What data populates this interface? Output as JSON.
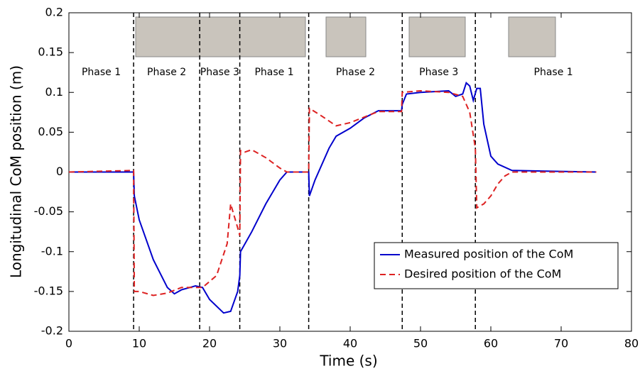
{
  "chart_data": {
    "type": "line",
    "xlabel": "Time (s)",
    "ylabel": "Longitudinal CoM position (m)",
    "xlim": [
      0,
      80
    ],
    "ylim": [
      -0.2,
      0.2
    ],
    "xticks": [
      0,
      10,
      20,
      30,
      40,
      50,
      60,
      70,
      80
    ],
    "yticks": [
      -0.2,
      -0.15,
      -0.1,
      -0.05,
      0,
      0.05,
      0.1,
      0.15,
      0.2
    ],
    "phase_boundaries": [
      9.2,
      18.6,
      24.3,
      34.1,
      47.4,
      57.8
    ],
    "phases": [
      "Phase 1",
      "Phase 2",
      "Phase 3",
      "Phase 1",
      "Phase 2",
      "Phase 3",
      "Phase 1"
    ],
    "legend": "lower right",
    "series": [
      {
        "name": "Measured position of the CoM",
        "color": "#0000cc",
        "dash": "solid",
        "x": [
          0,
          9.2,
          9.3,
          10,
          12,
          14,
          15,
          16,
          18,
          19,
          20,
          22,
          23,
          24,
          24.3,
          24.4,
          26,
          28,
          30,
          31,
          34.1,
          34.2,
          35,
          37,
          38,
          40,
          42,
          44,
          47.3,
          47.4,
          48,
          50,
          52,
          54,
          55,
          56,
          56.5,
          57,
          57.5,
          58,
          58.5,
          59,
          60,
          61,
          63,
          75
        ],
        "values": [
          0,
          0,
          -0.03,
          -0.06,
          -0.11,
          -0.145,
          -0.153,
          -0.148,
          -0.143,
          -0.145,
          -0.16,
          -0.177,
          -0.175,
          -0.15,
          -0.13,
          -0.1,
          -0.075,
          -0.04,
          -0.01,
          0,
          0,
          -0.03,
          -0.01,
          0.03,
          0.045,
          0.055,
          0.068,
          0.077,
          0.077,
          0.085,
          0.098,
          0.1,
          0.101,
          0.102,
          0.095,
          0.098,
          0.112,
          0.108,
          0.09,
          0.105,
          0.105,
          0.06,
          0.02,
          0.01,
          0.002,
          0
        ]
      },
      {
        "name": "Desired position of the CoM",
        "color": "#dd2222",
        "dash": "dashed",
        "x": [
          0,
          9.2,
          9.3,
          10,
          12,
          14,
          16,
          19,
          21,
          22.5,
          23,
          24,
          24.3,
          24.4,
          25,
          26,
          28,
          30,
          31,
          34.1,
          34.2,
          36,
          38,
          40,
          44,
          47.3,
          47.4,
          50,
          54,
          56,
          57,
          57.8,
          58,
          59,
          60,
          61,
          62,
          63,
          75
        ],
        "values": [
          0,
          0.002,
          -0.15,
          -0.15,
          -0.155,
          -0.152,
          -0.145,
          -0.145,
          -0.13,
          -0.09,
          -0.04,
          -0.07,
          -0.08,
          0.027,
          0.025,
          0.028,
          0.018,
          0.005,
          0,
          0,
          0.08,
          0.07,
          0.058,
          0.062,
          0.076,
          0.076,
          0.1,
          0.102,
          0.1,
          0.095,
          0.075,
          0.03,
          -0.045,
          -0.04,
          -0.03,
          -0.015,
          -0.005,
          0,
          0
        ]
      }
    ]
  }
}
